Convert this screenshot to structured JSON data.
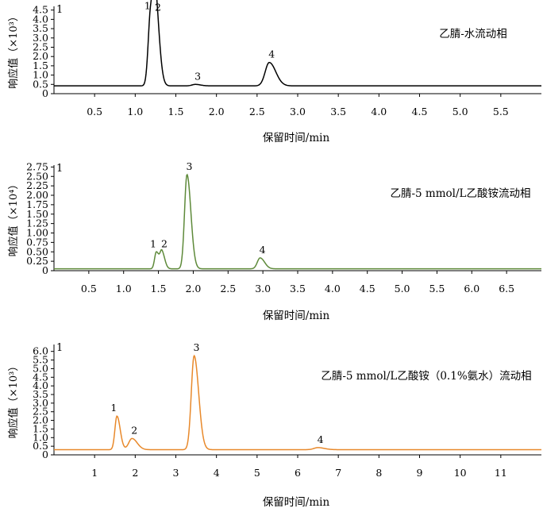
{
  "chart_data": [
    {
      "type": "line",
      "panel_marker": "1",
      "ylabel": "响应值（×10³）",
      "xlabel": "保留时间/min",
      "annotation": "乙腈-水流动相",
      "color": "#000000",
      "xlim": [
        0,
        6.0
      ],
      "ylim": [
        0,
        4.7
      ],
      "xticks": [
        0.5,
        1.0,
        1.5,
        2.0,
        2.5,
        3.0,
        3.5,
        4.0,
        4.5,
        5.0,
        5.5
      ],
      "xtick_labels": [
        "0.5",
        "1.0",
        "1.5",
        "2.0",
        "2.5",
        "3.0",
        "3.5",
        "4.0",
        "4.5",
        "5.0",
        "5.5"
      ],
      "yticks": [
        0,
        0.5,
        1.0,
        1.5,
        2.0,
        2.5,
        3.0,
        3.5,
        4.0,
        4.5
      ],
      "ytick_labels": [
        "0",
        "0.5",
        "1.0",
        "1.5",
        "2.0",
        "2.5",
        "3.0",
        "3.5",
        "4.0",
        "4.5"
      ],
      "baseline": 0.42,
      "peaks": [
        {
          "label": "1",
          "t": 1.19,
          "height": 4.3,
          "width": 0.03
        },
        {
          "label": "2",
          "t": 1.25,
          "height": 4.2,
          "width": 0.03
        },
        {
          "label": "3",
          "t": 1.74,
          "height": 0.5,
          "width": 0.04
        },
        {
          "label": "4",
          "t": 2.65,
          "height": 1.68,
          "width": 0.05
        }
      ]
    },
    {
      "type": "line",
      "panel_marker": "1",
      "ylabel": "响应值（×10⁴）",
      "xlabel": "保留时间/min",
      "annotation": "乙腈-5 mmol/L乙酸铵流动相",
      "color": "#5e8a3a",
      "xlim": [
        0,
        7.0
      ],
      "ylim": [
        0,
        2.8
      ],
      "xticks": [
        0.5,
        1.0,
        1.5,
        2.0,
        2.5,
        3.0,
        3.5,
        4.0,
        4.5,
        5.0,
        5.5,
        6.0,
        6.5
      ],
      "xtick_labels": [
        "0.5",
        "1.0",
        "1.5",
        "2.0",
        "2.5",
        "3.0",
        "3.5",
        "4.0",
        "4.5",
        "5.0",
        "5.5",
        "6.0",
        "6.5"
      ],
      "yticks": [
        0,
        0.25,
        0.5,
        0.75,
        1.0,
        1.25,
        1.5,
        1.75,
        2.0,
        2.25,
        2.5,
        2.75
      ],
      "ytick_labels": [
        "0",
        "0.25",
        "0.50",
        "0.75",
        "1.00",
        "1.25",
        "1.50",
        "1.75",
        "2.00",
        "2.25",
        "2.50",
        "2.75"
      ],
      "baseline": 0.05,
      "peaks": [
        {
          "label": "1",
          "t": 1.47,
          "height": 0.5,
          "width": 0.025
        },
        {
          "label": "2",
          "t": 1.55,
          "height": 0.49,
          "width": 0.025
        },
        {
          "label": "3",
          "t": 1.91,
          "height": 2.55,
          "width": 0.035
        },
        {
          "label": "4",
          "t": 2.96,
          "height": 0.34,
          "width": 0.04
        }
      ]
    },
    {
      "type": "line",
      "panel_marker": "1",
      "ylabel": "响应值（×10³）",
      "xlabel": "保留时间/min",
      "annotation": "乙腈-5 mmol/L乙酸铵（0.1%氨水）流动相",
      "color": "#e8892b",
      "xlim": [
        0,
        12.0
      ],
      "ylim": [
        0,
        6.4
      ],
      "xticks": [
        1,
        2,
        3,
        4,
        5,
        6,
        7,
        8,
        9,
        10,
        11
      ],
      "xtick_labels": [
        "1",
        "2",
        "3",
        "4",
        "5",
        "6",
        "7",
        "8",
        "9",
        "10",
        "11"
      ],
      "yticks": [
        0,
        0.5,
        1.0,
        1.5,
        2.0,
        2.5,
        3.0,
        3.5,
        4.0,
        4.5,
        5.0,
        5.5,
        6.0
      ],
      "ytick_labels": [
        "0",
        "0.5",
        "1.0",
        "1.5",
        "2.0",
        "2.5",
        "3.0",
        "3.5",
        "4.0",
        "4.5",
        "5.0",
        "5.5",
        "6.0"
      ],
      "baseline": 0.3,
      "peaks": [
        {
          "label": "1",
          "t": 1.55,
          "height": 2.25,
          "width": 0.05
        },
        {
          "label": "2",
          "t": 1.92,
          "height": 0.95,
          "width": 0.08
        },
        {
          "label": "3",
          "t": 3.45,
          "height": 5.75,
          "width": 0.07
        },
        {
          "label": "4",
          "t": 6.5,
          "height": 0.42,
          "width": 0.1
        }
      ]
    }
  ]
}
